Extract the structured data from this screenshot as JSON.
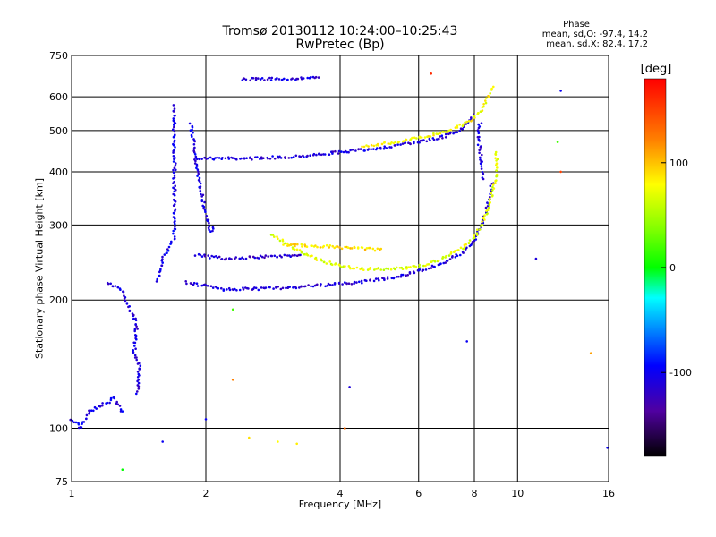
{
  "chart_data": {
    "type": "scatter",
    "title": "Tromsø 20130112 10:24:00–10:25:43",
    "subtitle": "RwPretec (Bp)",
    "xlabel": "Frequency [MHz]",
    "ylabel": "Stationary phase Virtual Height [km]",
    "x_scale": "log",
    "y_scale": "log",
    "xlim": [
      1,
      16
    ],
    "ylim": [
      75,
      750
    ],
    "x_ticks": [
      "1",
      "2",
      "4",
      "6",
      "8",
      "10",
      "16"
    ],
    "x_tick_values": [
      1,
      2,
      4,
      6,
      8,
      10,
      16
    ],
    "y_ticks": [
      "75",
      "100",
      "200",
      "300",
      "400",
      "500",
      "600",
      "750"
    ],
    "y_tick_values": [
      75,
      100,
      200,
      300,
      400,
      500,
      600,
      750
    ],
    "grid": true,
    "phase_stats": {
      "title": "Phase",
      "o_mode": "mean, sd,O: -97.4, 14.2",
      "x_mode": "mean, sd,X: 82.4, 17.2"
    },
    "colorbar": {
      "label": "[deg]",
      "ticks": [
        "100",
        "0",
        "-100"
      ],
      "tick_values": [
        100,
        0,
        -100
      ],
      "range": [
        -180,
        180
      ]
    },
    "traces": [
      {
        "name": "",
        "phase": -110,
        "points": [
          [
            1.9,
            430
          ],
          [
            2.5,
            430
          ],
          [
            3.0,
            433
          ],
          [
            3.5,
            438
          ],
          [
            4.0,
            445
          ],
          [
            4.5,
            450
          ],
          [
            5.0,
            456
          ],
          [
            5.5,
            463
          ],
          [
            6.0,
            470
          ],
          [
            6.5,
            478
          ],
          [
            7.0,
            488
          ],
          [
            7.5,
            505
          ],
          [
            7.8,
            525
          ],
          [
            8.0,
            550
          ]
        ]
      },
      {
        "name": "",
        "phase": 80,
        "points": [
          [
            4.5,
            460
          ],
          [
            5.0,
            465
          ],
          [
            5.5,
            472
          ],
          [
            6.0,
            480
          ],
          [
            6.5,
            490
          ],
          [
            7.0,
            500
          ],
          [
            7.5,
            515
          ],
          [
            8.0,
            535
          ],
          [
            8.3,
            560
          ],
          [
            8.6,
            600
          ],
          [
            8.8,
            640
          ]
        ]
      },
      {
        "name": "",
        "phase": -110,
        "points": [
          [
            1.8,
            220
          ],
          [
            2.2,
            212
          ],
          [
            2.8,
            213
          ],
          [
            3.5,
            216
          ],
          [
            4.0,
            218
          ],
          [
            4.5,
            221
          ],
          [
            5.0,
            224
          ],
          [
            5.5,
            228
          ],
          [
            6.0,
            234
          ],
          [
            6.5,
            240
          ],
          [
            7.0,
            248
          ],
          [
            7.5,
            258
          ],
          [
            8.0,
            275
          ],
          [
            8.3,
            300
          ],
          [
            8.6,
            340
          ],
          [
            8.8,
            380
          ]
        ]
      },
      {
        "name": "",
        "phase": 70,
        "points": [
          [
            2.8,
            285
          ],
          [
            3.2,
            262
          ],
          [
            3.6,
            248
          ],
          [
            4.0,
            240
          ],
          [
            4.5,
            237
          ],
          [
            5.0,
            236
          ],
          [
            5.5,
            237
          ],
          [
            6.0,
            240
          ],
          [
            6.5,
            246
          ],
          [
            7.0,
            254
          ],
          [
            7.5,
            265
          ],
          [
            8.0,
            280
          ],
          [
            8.3,
            300
          ],
          [
            8.6,
            330
          ],
          [
            8.9,
            380
          ],
          [
            9.0,
            450
          ]
        ]
      },
      {
        "name": "",
        "phase": -115,
        "points": [
          [
            1.9,
            255
          ],
          [
            2.2,
            250
          ],
          [
            2.6,
            252
          ],
          [
            3.0,
            254
          ],
          [
            3.3,
            256
          ]
        ]
      },
      {
        "name": "",
        "phase": 90,
        "points": [
          [
            3.0,
            270
          ],
          [
            3.5,
            268
          ],
          [
            4.0,
            266
          ],
          [
            4.5,
            264
          ],
          [
            5.0,
            262
          ]
        ]
      },
      {
        "name": "",
        "phase": -110,
        "points": [
          [
            2.4,
            660
          ],
          [
            2.8,
            660
          ],
          [
            3.2,
            662
          ],
          [
            3.6,
            665
          ]
        ]
      },
      {
        "name": "",
        "phase": -105,
        "points": [
          [
            1.7,
            570
          ],
          [
            1.7,
            450
          ],
          [
            1.7,
            350
          ],
          [
            1.7,
            280
          ],
          [
            1.6,
            250
          ],
          [
            1.55,
            220
          ]
        ]
      },
      {
        "name": "",
        "phase": -105,
        "points": [
          [
            1.85,
            520
          ],
          [
            1.9,
            430
          ],
          [
            1.95,
            360
          ],
          [
            2.0,
            320
          ],
          [
            2.05,
            290
          ],
          [
            2.1,
            300
          ]
        ]
      },
      {
        "name": "",
        "phase": -110,
        "points": [
          [
            1.2,
            220
          ],
          [
            1.3,
            210
          ],
          [
            1.35,
            190
          ],
          [
            1.4,
            175
          ],
          [
            1.38,
            150
          ],
          [
            1.42,
            140
          ],
          [
            1.4,
            120
          ]
        ]
      },
      {
        "name": "",
        "phase": -105,
        "points": [
          [
            1.0,
            105
          ],
          [
            1.05,
            100
          ],
          [
            1.1,
            110
          ],
          [
            1.15,
            112
          ],
          [
            1.2,
            115
          ],
          [
            1.25,
            118
          ],
          [
            1.3,
            108
          ]
        ]
      },
      {
        "name": "",
        "phase": -110,
        "points": [
          [
            8.2,
            520
          ],
          [
            8.2,
            470
          ],
          [
            8.3,
            420
          ],
          [
            8.35,
            380
          ]
        ]
      }
    ],
    "isolated_points": [
      {
        "x": 6.4,
        "y": 680,
        "phase": 160
      },
      {
        "x": 8.3,
        "y": 520,
        "phase": -110
      },
      {
        "x": 11.0,
        "y": 250,
        "phase": -110
      },
      {
        "x": 12.5,
        "y": 620,
        "phase": -100
      },
      {
        "x": 12.5,
        "y": 400,
        "phase": 150
      },
      {
        "x": 12.3,
        "y": 470,
        "phase": 20
      },
      {
        "x": 14.6,
        "y": 150,
        "phase": 110
      },
      {
        "x": 7.7,
        "y": 160,
        "phase": -100
      },
      {
        "x": 4.2,
        "y": 125,
        "phase": -110
      },
      {
        "x": 4.1,
        "y": 100,
        "phase": 130
      },
      {
        "x": 2.0,
        "y": 105,
        "phase": -100
      },
      {
        "x": 2.5,
        "y": 95,
        "phase": 90
      },
      {
        "x": 2.9,
        "y": 93,
        "phase": 80
      },
      {
        "x": 3.2,
        "y": 92,
        "phase": 85
      },
      {
        "x": 1.6,
        "y": 93,
        "phase": -100
      },
      {
        "x": 1.3,
        "y": 80,
        "phase": 0
      },
      {
        "x": 15.9,
        "y": 90,
        "phase": -100
      },
      {
        "x": 2.3,
        "y": 130,
        "phase": 120
      },
      {
        "x": 2.3,
        "y": 190,
        "phase": 20
      }
    ]
  }
}
